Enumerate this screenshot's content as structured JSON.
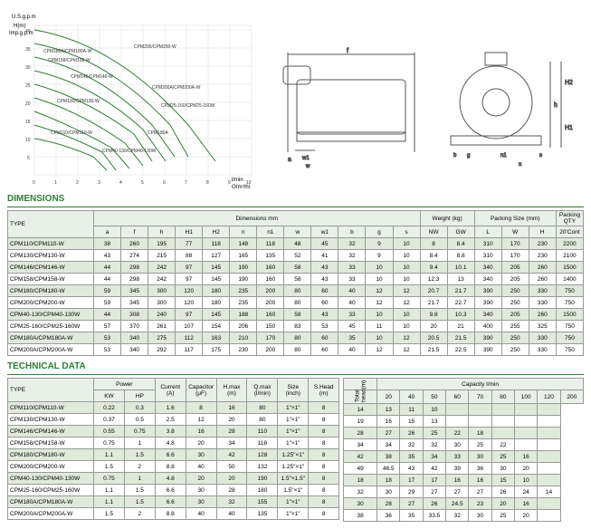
{
  "chart": {
    "x_label": "Q(m³/h)",
    "y_label": "H(m)",
    "top_label": "U.S.g.p.m",
    "sec_label": "Imp.g.p.m",
    "sec2_label": "l/min",
    "us_ticks": [
      5,
      10,
      15,
      20,
      25,
      30,
      35,
      40,
      45
    ],
    "imp_ticks": [
      5,
      10,
      15,
      20,
      25,
      30,
      35
    ],
    "lmin_ticks": [
      10,
      20,
      30,
      40,
      50,
      60,
      70,
      80,
      90,
      100,
      110,
      120,
      130,
      140,
      150,
      160,
      170
    ],
    "q_ticks": [
      0,
      1,
      2,
      3,
      4,
      5,
      6,
      7,
      8,
      9,
      10
    ],
    "h_ticks": [
      5,
      10,
      15,
      20,
      25,
      30,
      35,
      40,
      45
    ],
    "series_labels": [
      "CPM180A/CPM180A-W",
      "CPM158/CPM158-W",
      "CPM200/CPM200-W",
      "CPM146/CPM146-W",
      "CPM130/CPM130-W",
      "CPM200A/CPM200A-W",
      "CPM25-160/CPM25-160W",
      "CPM110/CPM110-W",
      "CPM180A",
      "CPM40-130/CPM40-130W"
    ],
    "line_color": "#2e7d32",
    "grid_color": "#c0c0c0"
  },
  "drawing": {
    "labels": [
      "a",
      "f",
      "h",
      "H1",
      "H2",
      "n",
      "n1",
      "w",
      "w1",
      "b",
      "g",
      "s"
    ]
  },
  "titles": {
    "dim": "DIMENSIONS",
    "tech": "TECHNICAL DATA"
  },
  "dim_headers": {
    "type": "TYPE",
    "dims": "Dimensions mm",
    "weight": "Weight (kg)",
    "packing": "Packing Size (mm)",
    "qty": "Packing QTY",
    "qty_sub": "20'Cont",
    "d": [
      "a",
      "f",
      "h",
      "H1",
      "H2",
      "n",
      "n1",
      "w",
      "w1",
      "b",
      "g",
      "s"
    ],
    "w": [
      "NW",
      "GW"
    ],
    "p": [
      "L",
      "W",
      "H"
    ]
  },
  "dim_rows": [
    [
      "CPM110/CPM110-W",
      "38",
      "260",
      "195",
      "77",
      "118",
      "148",
      "118",
      "48",
      "45",
      "32",
      "9",
      "10",
      "8",
      "8.4",
      "310",
      "170",
      "230",
      "2200"
    ],
    [
      "CPM130/CPM130-W",
      "43",
      "274",
      "215",
      "88",
      "127",
      "165",
      "135",
      "52",
      "41",
      "32",
      "9",
      "10",
      "8.4",
      "8.8",
      "310",
      "170",
      "230",
      "2100"
    ],
    [
      "CPM146/CPM146-W",
      "44",
      "298",
      "242",
      "97",
      "145",
      "190",
      "160",
      "58",
      "43",
      "33",
      "10",
      "10",
      "9.4",
      "10.1",
      "340",
      "205",
      "260",
      "1500"
    ],
    [
      "CPM158/CPM158-W",
      "44",
      "298",
      "242",
      "97",
      "145",
      "190",
      "160",
      "58",
      "43",
      "33",
      "10",
      "10",
      "12.3",
      "13",
      "340",
      "205",
      "260",
      "1400"
    ],
    [
      "CPM180/CPM180-W",
      "59",
      "345",
      "300",
      "120",
      "180",
      "235",
      "200",
      "80",
      "60",
      "40",
      "12",
      "12",
      "20.7",
      "21.7",
      "390",
      "250",
      "330",
      "750"
    ],
    [
      "CPM200/CPM200-W",
      "59",
      "345",
      "300",
      "120",
      "180",
      "235",
      "200",
      "80",
      "60",
      "40",
      "12",
      "12",
      "21.7",
      "22.7",
      "390",
      "250",
      "330",
      "750"
    ],
    [
      "CPM40-130/CPM40-130W",
      "44",
      "308",
      "240",
      "97",
      "145",
      "188",
      "160",
      "58",
      "43",
      "33",
      "10",
      "10",
      "9.8",
      "10.3",
      "340",
      "205",
      "260",
      "1500"
    ],
    [
      "CPM25-160/CPM25-160W",
      "57",
      "370",
      "261",
      "107",
      "154",
      "206",
      "150",
      "83",
      "53",
      "45",
      "11",
      "10",
      "20",
      "21",
      "400",
      "255",
      "325",
      "750"
    ],
    [
      "CPM180A/CPM180A-W",
      "53",
      "340",
      "275",
      "112",
      "163",
      "210",
      "170",
      "80",
      "60",
      "35",
      "10",
      "12",
      "20.5",
      "21.5",
      "390",
      "250",
      "330",
      "750"
    ],
    [
      "CPM200A/CPM200A-W",
      "53",
      "340",
      "292",
      "117",
      "175",
      "230",
      "200",
      "80",
      "60",
      "40",
      "12",
      "12",
      "21.5",
      "22.5",
      "390",
      "250",
      "330",
      "750"
    ]
  ],
  "tech_headers_1": {
    "type": "TYPE",
    "power": "Power",
    "cur": "Current (A)",
    "cap": "Capacitor (μF)",
    "hmax": "H.max (m)",
    "qmax": "Q.max (l/min)",
    "size": "Size (inch)",
    "shead": "S.Head (m)",
    "kw": "KW",
    "hp": "HP"
  },
  "tech_rows": [
    [
      "CPM110/CPM110-W",
      "0.22",
      "0.3",
      "1.6",
      "8",
      "16",
      "80",
      "1\"×1\"",
      "8"
    ],
    [
      "CPM130/CPM130-W",
      "0.37",
      "0.5",
      "2.5",
      "12",
      "20",
      "80",
      "1\"×1\"",
      "8"
    ],
    [
      "CPM146/CPM146-W",
      "0.55",
      "0.75",
      "3.8",
      "16",
      "28",
      "110",
      "1\"×1\"",
      "8"
    ],
    [
      "CPM158/CPM158-W",
      "0.75",
      "1",
      "4.8",
      "20",
      "34",
      "118",
      "1\"×1\"",
      "8"
    ],
    [
      "CPM180/CPM180-W",
      "1.1",
      "1.5",
      "6.6",
      "30",
      "42",
      "128",
      "1.25\"×1\"",
      "8"
    ],
    [
      "CPM200/CPM200-W",
      "1.5",
      "2",
      "8.8",
      "40",
      "50",
      "132",
      "1.25\"×1\"",
      "8"
    ],
    [
      "CPM40-130/CPM40-130W",
      "0.75",
      "1",
      "4.8",
      "20",
      "20",
      "190",
      "1.5\"×1.5\"",
      "8"
    ],
    [
      "CPM25-160/CPM25-160W",
      "1.1",
      "1.5",
      "6.6",
      "30",
      "28",
      "180",
      "1.5\"×1\"",
      "8"
    ],
    [
      "CPM180A/CPM180A-W",
      "1.1",
      "1.5",
      "6.6",
      "30",
      "32",
      "155",
      "1\"×1\"",
      "8"
    ],
    [
      "CPM200A/CPM200A-W",
      "1.5",
      "2",
      "8.8",
      "40",
      "40",
      "135",
      "1\"×1\"",
      "8"
    ]
  ],
  "cap_header": "Capacity l/min",
  "cap_th_label": "Total head(m)",
  "cap_cols": [
    "20",
    "40",
    "50",
    "60",
    "70",
    "80",
    "100",
    "120",
    "200"
  ],
  "cap_rows": [
    [
      "14",
      "13",
      "11",
      "10",
      "",
      "",
      "",
      "",
      ""
    ],
    [
      "19",
      "16",
      "15",
      "13",
      "",
      "",
      "",
      "",
      ""
    ],
    [
      "28",
      "27",
      "26",
      "25",
      "22",
      "18",
      "",
      "",
      ""
    ],
    [
      "34",
      "34",
      "32",
      "32",
      "30",
      "25",
      "22",
      "",
      ""
    ],
    [
      "42",
      "38",
      "35",
      "34",
      "33",
      "30",
      "25",
      "16",
      ""
    ],
    [
      "49",
      "46.5",
      "43",
      "42",
      "39",
      "36",
      "30",
      "20",
      ""
    ],
    [
      "18",
      "18",
      "17",
      "17",
      "16",
      "16",
      "15",
      "10",
      ""
    ],
    [
      "32",
      "30",
      "29",
      "27",
      "27",
      "27",
      "26",
      "24",
      "14"
    ],
    [
      "30",
      "28",
      "27",
      "26",
      "24.5",
      "23",
      "20",
      "16",
      ""
    ],
    [
      "38",
      "36",
      "35",
      "33.5",
      "32",
      "30",
      "25",
      "20",
      ""
    ]
  ]
}
